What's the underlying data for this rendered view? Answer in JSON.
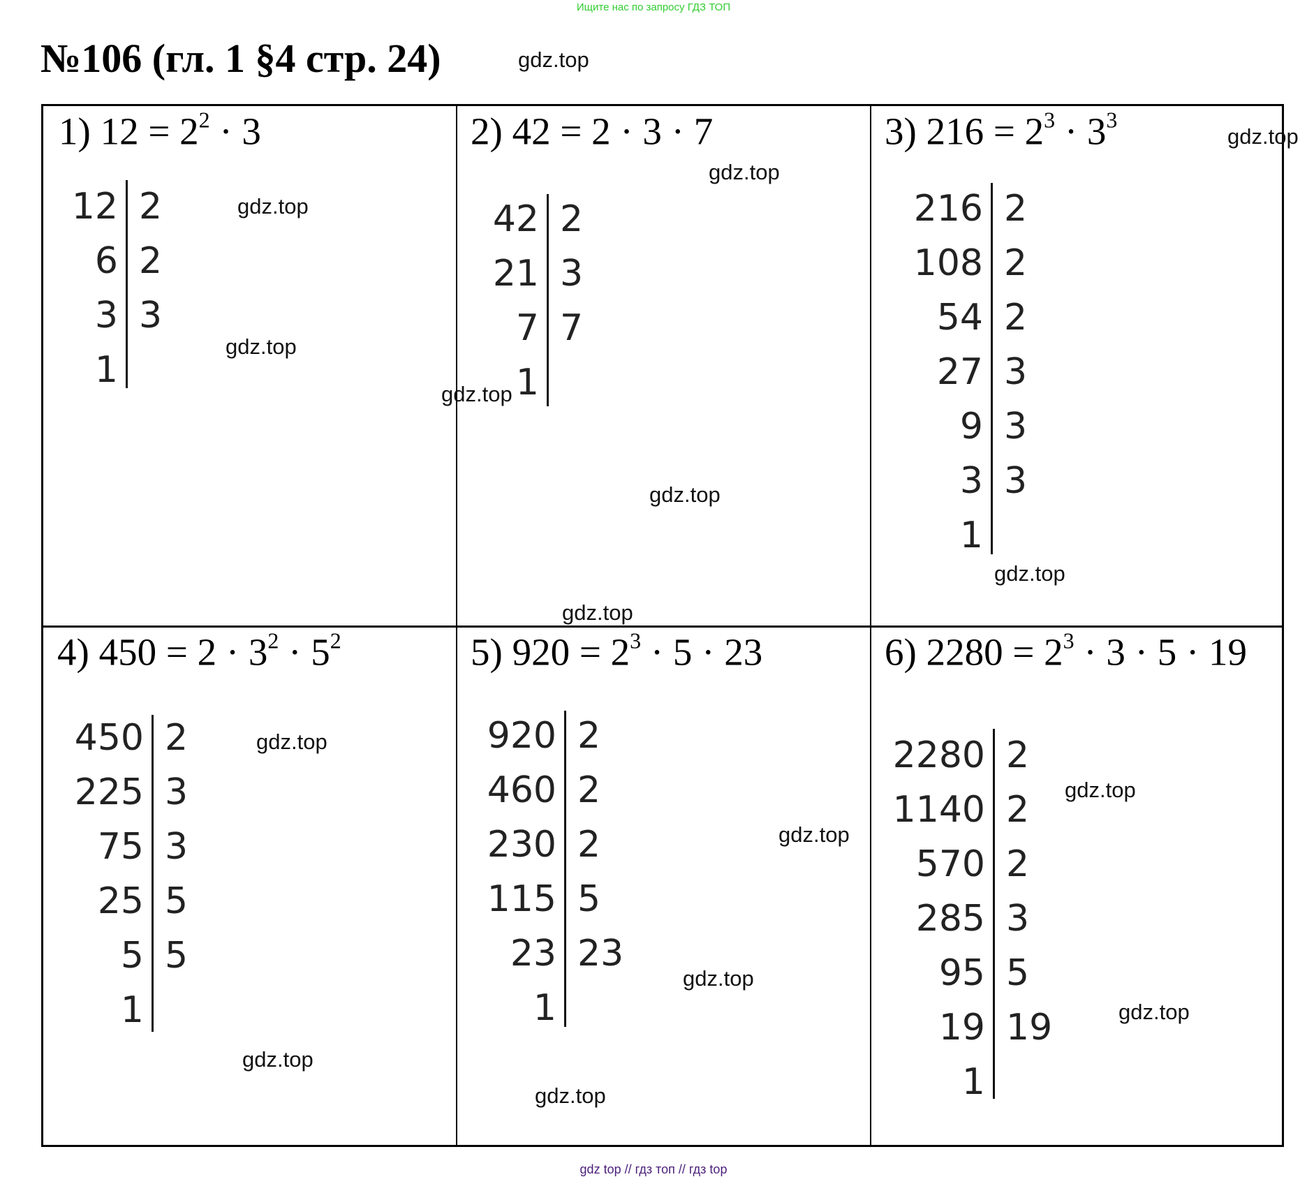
{
  "banner": "Ищите нас по запросу ГДЗ ТОП",
  "title": "№106 (гл. 1 §4 стр. 24)",
  "watermark": "gdz.top",
  "footer": "gdz top  //  гдз топ  //  гдз top",
  "cells": [
    {
      "title": [
        {
          "t": "1) 12 = 2"
        },
        {
          "sup": "2"
        },
        {
          "t": " · 3"
        }
      ],
      "rows": [
        [
          "12",
          "2"
        ],
        [
          "6",
          "2"
        ],
        [
          "3",
          "3"
        ],
        [
          "1",
          ""
        ]
      ]
    },
    {
      "title": [
        {
          "t": "2) 42 = 2 · 3 · 7"
        }
      ],
      "rows": [
        [
          "42",
          "2"
        ],
        [
          "21",
          "3"
        ],
        [
          "7",
          "7"
        ],
        [
          "1",
          ""
        ]
      ]
    },
    {
      "title": [
        {
          "t": "3) 216 = 2"
        },
        {
          "sup": "3"
        },
        {
          "t": " · 3"
        },
        {
          "sup": "3"
        }
      ],
      "rows": [
        [
          "216",
          "2"
        ],
        [
          "108",
          "2"
        ],
        [
          "54",
          "2"
        ],
        [
          "27",
          "3"
        ],
        [
          "9",
          "3"
        ],
        [
          "3",
          "3"
        ],
        [
          "1",
          ""
        ]
      ]
    },
    {
      "title": [
        {
          "t": "4) 450 = 2 · 3"
        },
        {
          "sup": "2"
        },
        {
          "t": " · 5"
        },
        {
          "sup": "2"
        }
      ],
      "rows": [
        [
          "450",
          "2"
        ],
        [
          "225",
          "3"
        ],
        [
          "75",
          "3"
        ],
        [
          "25",
          "5"
        ],
        [
          "5",
          "5"
        ],
        [
          "1",
          ""
        ]
      ]
    },
    {
      "title": [
        {
          "t": "5) 920 = 2"
        },
        {
          "sup": "3"
        },
        {
          "t": " · 5 · 23"
        }
      ],
      "rows": [
        [
          "920",
          "2"
        ],
        [
          "460",
          "2"
        ],
        [
          "230",
          "2"
        ],
        [
          "115",
          "5"
        ],
        [
          "23",
          "23"
        ],
        [
          "1",
          ""
        ]
      ]
    },
    {
      "title": [
        {
          "t": "6) 2280 = 2"
        },
        {
          "sup": "3"
        },
        {
          "t": " · 3 · 5 · 19"
        }
      ],
      "rows": [
        [
          "2280",
          "2"
        ],
        [
          "1140",
          "2"
        ],
        [
          "570",
          "2"
        ],
        [
          "285",
          "3"
        ],
        [
          "95",
          "5"
        ],
        [
          "19",
          "19"
        ],
        [
          "1",
          ""
        ]
      ]
    }
  ]
}
